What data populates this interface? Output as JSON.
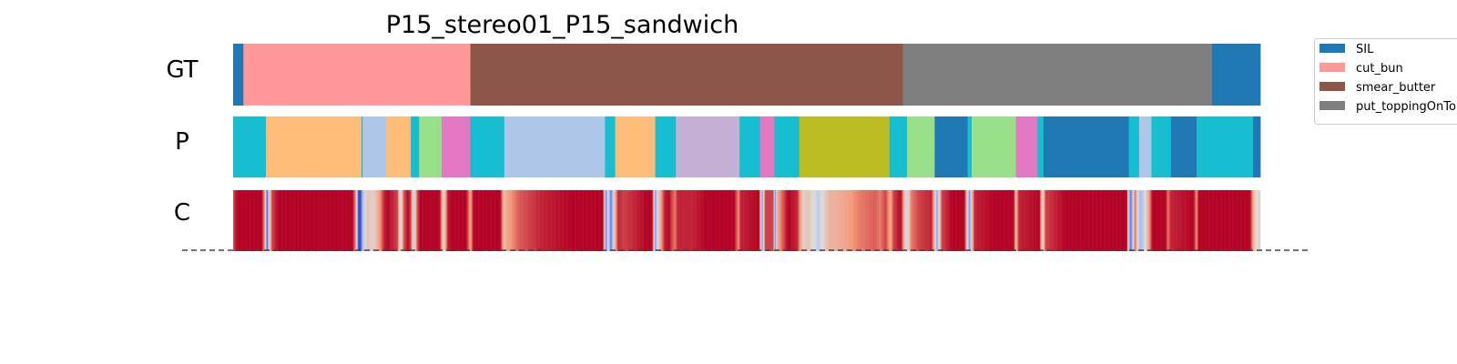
{
  "chart_data": {
    "type": "heatmap",
    "title": "P15_stereo01_P15_sandwich",
    "rows": [
      {
        "key": "gt",
        "label": "GT"
      },
      {
        "key": "pred",
        "label": "P"
      },
      {
        "key": "conf",
        "label": "C"
      }
    ],
    "legend": {
      "placement": "top-right",
      "items": [
        {
          "label": "SIL",
          "color": "#1f77b4"
        },
        {
          "label": "cut_bun",
          "color": "#ff9896"
        },
        {
          "label": "smear_butter",
          "color": "#8c564b"
        },
        {
          "label": "put_toppingOnTop",
          "color": "#7f7f7f"
        }
      ]
    },
    "total_frames": 1000,
    "gt_segments": [
      {
        "start": 0,
        "end": 10,
        "color": "#1f77b4"
      },
      {
        "start": 10,
        "end": 231,
        "color": "#ff9896"
      },
      {
        "start": 231,
        "end": 652,
        "color": "#8c564b"
      },
      {
        "start": 652,
        "end": 953,
        "color": "#7f7f7f"
      },
      {
        "start": 953,
        "end": 1000,
        "color": "#1f77b4"
      }
    ],
    "pred_segments": [
      {
        "start": 0,
        "end": 32,
        "color": "#17becf"
      },
      {
        "start": 32,
        "end": 125,
        "color": "#ffbb78"
      },
      {
        "start": 125,
        "end": 126,
        "color": "#17becf"
      },
      {
        "start": 126,
        "end": 149,
        "color": "#aec7e8"
      },
      {
        "start": 149,
        "end": 173,
        "color": "#ffbb78"
      },
      {
        "start": 173,
        "end": 181,
        "color": "#17becf"
      },
      {
        "start": 181,
        "end": 203,
        "color": "#98df8a"
      },
      {
        "start": 203,
        "end": 231,
        "color": "#e377c2"
      },
      {
        "start": 231,
        "end": 264,
        "color": "#17becf"
      },
      {
        "start": 264,
        "end": 362,
        "color": "#aec7e8"
      },
      {
        "start": 362,
        "end": 372,
        "color": "#17becf"
      },
      {
        "start": 372,
        "end": 411,
        "color": "#ffbb78"
      },
      {
        "start": 411,
        "end": 431,
        "color": "#17becf"
      },
      {
        "start": 431,
        "end": 493,
        "color": "#c5b0d5"
      },
      {
        "start": 493,
        "end": 513,
        "color": "#17becf"
      },
      {
        "start": 513,
        "end": 527,
        "color": "#e377c2"
      },
      {
        "start": 527,
        "end": 551,
        "color": "#17becf"
      },
      {
        "start": 551,
        "end": 639,
        "color": "#bcbd22"
      },
      {
        "start": 639,
        "end": 656,
        "color": "#17becf"
      },
      {
        "start": 656,
        "end": 683,
        "color": "#98df8a"
      },
      {
        "start": 683,
        "end": 715,
        "color": "#1f77b4"
      },
      {
        "start": 715,
        "end": 719,
        "color": "#17becf"
      },
      {
        "start": 719,
        "end": 762,
        "color": "#98df8a"
      },
      {
        "start": 762,
        "end": 783,
        "color": "#e377c2"
      },
      {
        "start": 783,
        "end": 789,
        "color": "#17becf"
      },
      {
        "start": 789,
        "end": 872,
        "color": "#1f77b4"
      },
      {
        "start": 872,
        "end": 882,
        "color": "#17becf"
      },
      {
        "start": 882,
        "end": 894,
        "color": "#aec7e8"
      },
      {
        "start": 894,
        "end": 913,
        "color": "#17becf"
      },
      {
        "start": 913,
        "end": 938,
        "color": "#1f77b4"
      },
      {
        "start": 938,
        "end": 993,
        "color": "#17becf"
      },
      {
        "start": 993,
        "end": 1000,
        "color": "#1f77b4"
      }
    ],
    "confidence_colormap": "coolwarm",
    "confidence_points": [
      [
        0,
        0.85
      ],
      [
        2,
        0.95
      ],
      [
        5,
        1.0
      ],
      [
        28,
        1.0
      ],
      [
        31,
        0.7
      ],
      [
        32,
        0.4
      ],
      [
        33,
        0.0
      ],
      [
        35,
        0.5
      ],
      [
        38,
        0.9
      ],
      [
        44,
        1.0
      ],
      [
        116,
        1.0
      ],
      [
        119,
        0.8
      ],
      [
        121,
        0.3
      ],
      [
        122,
        0.0
      ],
      [
        124,
        0.0
      ],
      [
        126,
        0.3
      ],
      [
        130,
        0.6
      ],
      [
        137,
        0.55
      ],
      [
        143,
        0.75
      ],
      [
        147,
        0.95
      ],
      [
        150,
        1.0
      ],
      [
        160,
        0.9
      ],
      [
        163,
        0.4
      ],
      [
        166,
        0.85
      ],
      [
        170,
        1.0
      ],
      [
        173,
        0.9
      ],
      [
        176,
        0.35
      ],
      [
        179,
        0.85
      ],
      [
        182,
        1.0
      ],
      [
        201,
        1.0
      ],
      [
        205,
        0.5
      ],
      [
        209,
        0.95
      ],
      [
        212,
        1.0
      ],
      [
        227,
        1.0
      ],
      [
        231,
        0.7
      ],
      [
        234,
        1.0
      ],
      [
        260,
        1.0
      ],
      [
        264,
        0.6
      ],
      [
        266,
        0.7
      ],
      [
        278,
        0.85
      ],
      [
        300,
        0.95
      ],
      [
        330,
        1.0
      ],
      [
        360,
        1.0
      ],
      [
        362,
        0.5
      ],
      [
        363,
        0.1
      ],
      [
        365,
        0.5
      ],
      [
        368,
        0.1
      ],
      [
        371,
        0.6
      ],
      [
        375,
        0.95
      ],
      [
        380,
        0.9
      ],
      [
        392,
        0.95
      ],
      [
        402,
        1.0
      ],
      [
        408,
        1.0
      ],
      [
        410,
        0.5
      ],
      [
        411,
        0.15
      ],
      [
        413,
        0.5
      ],
      [
        420,
        0.95
      ],
      [
        424,
        1.0
      ],
      [
        430,
        0.8
      ],
      [
        433,
        0.95
      ],
      [
        448,
        0.95
      ],
      [
        460,
        1.0
      ],
      [
        488,
        1.0
      ],
      [
        492,
        0.75
      ],
      [
        494,
        0.95
      ],
      [
        512,
        1.0
      ],
      [
        514,
        0.5
      ],
      [
        515,
        0.15
      ],
      [
        518,
        0.9
      ],
      [
        526,
        0.9
      ],
      [
        527,
        0.3
      ],
      [
        528,
        0.15
      ],
      [
        530,
        0.7
      ],
      [
        540,
        1.0
      ],
      [
        549,
        0.95
      ],
      [
        555,
        0.55
      ],
      [
        560,
        0.6
      ],
      [
        565,
        0.5
      ],
      [
        570,
        0.4
      ],
      [
        575,
        0.55
      ],
      [
        580,
        0.65
      ],
      [
        595,
        0.7
      ],
      [
        610,
        0.8
      ],
      [
        625,
        0.85
      ],
      [
        630,
        0.8
      ],
      [
        635,
        0.9
      ],
      [
        640,
        0.7
      ],
      [
        643,
        0.9
      ],
      [
        650,
        1.0
      ],
      [
        654,
        0.6
      ],
      [
        656,
        0.4
      ],
      [
        660,
        0.8
      ],
      [
        668,
        0.9
      ],
      [
        680,
        0.95
      ],
      [
        684,
        0.5
      ],
      [
        685,
        0.2
      ],
      [
        690,
        0.9
      ],
      [
        700,
        1.0
      ],
      [
        712,
        1.0
      ],
      [
        715,
        0.5
      ],
      [
        717,
        0.15
      ],
      [
        719,
        0.6
      ],
      [
        722,
        0.95
      ],
      [
        740,
        1.0
      ],
      [
        760,
        1.0
      ],
      [
        762,
        0.6
      ],
      [
        765,
        0.95
      ],
      [
        785,
        1.0
      ],
      [
        788,
        0.5
      ],
      [
        791,
        0.9
      ],
      [
        810,
        1.0
      ],
      [
        870,
        1.0
      ],
      [
        872,
        0.35
      ],
      [
        874,
        0.1
      ],
      [
        876,
        0.4
      ],
      [
        878,
        0.85
      ],
      [
        881,
        0.5
      ],
      [
        883,
        0.3
      ],
      [
        887,
        0.45
      ],
      [
        892,
        0.75
      ],
      [
        895,
        1.0
      ],
      [
        908,
        1.0
      ],
      [
        910,
        0.8
      ],
      [
        913,
        0.95
      ],
      [
        935,
        1.0
      ],
      [
        938,
        0.75
      ],
      [
        940,
        1.0
      ],
      [
        990,
        1.0
      ],
      [
        993,
        0.7
      ],
      [
        996,
        0.5
      ],
      [
        1000,
        0.55
      ]
    ]
  }
}
